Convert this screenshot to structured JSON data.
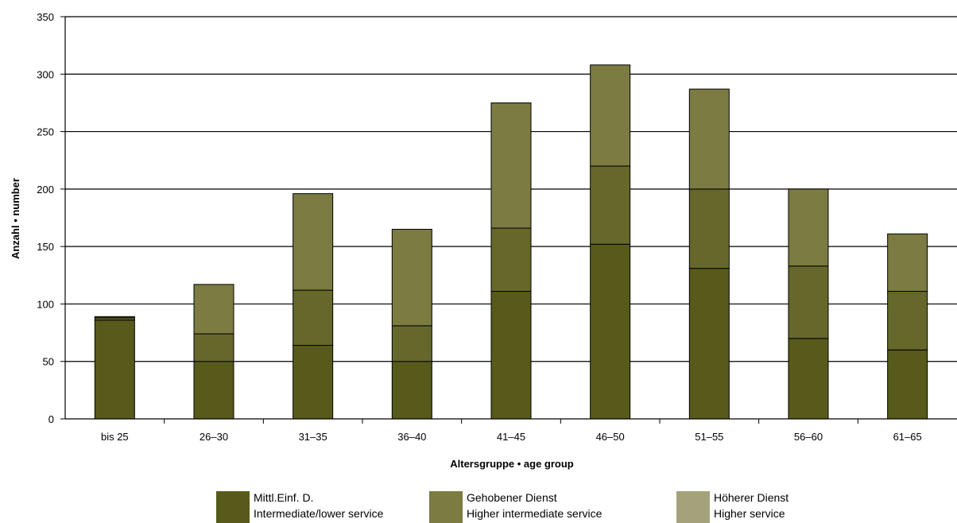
{
  "chart_data": {
    "type": "bar",
    "stacked": true,
    "categories": [
      "bis 25",
      "26–30",
      "31–35",
      "36–40",
      "41–45",
      "46–50",
      "51–55",
      "56–60",
      "61–65"
    ],
    "series": [
      {
        "name_de": "Mittl.Einf. D.",
        "name_en": "Intermediate/lower service",
        "color": "#575a1a",
        "values": [
          86,
          50,
          64,
          50,
          111,
          152,
          131,
          70,
          60
        ]
      },
      {
        "name_de": "Gehobener Dienst",
        "name_en": "Higher intermediate service",
        "color": "#66682b",
        "values": [
          2,
          24,
          48,
          31,
          55,
          68,
          69,
          63,
          51
        ]
      },
      {
        "name_de": "Höherer Dienst",
        "name_en": "Higher service",
        "color": "#7b7b42",
        "values": [
          1,
          43,
          84,
          84,
          109,
          88,
          87,
          67,
          50
        ]
      }
    ],
    "xlabel": "Altersgruppe • age group",
    "ylabel": "Anzahl • number",
    "ylim": [
      0,
      350
    ],
    "yticks": [
      0,
      50,
      100,
      150,
      200,
      250,
      300,
      350
    ],
    "grid": true,
    "legend_position": "bottom"
  }
}
